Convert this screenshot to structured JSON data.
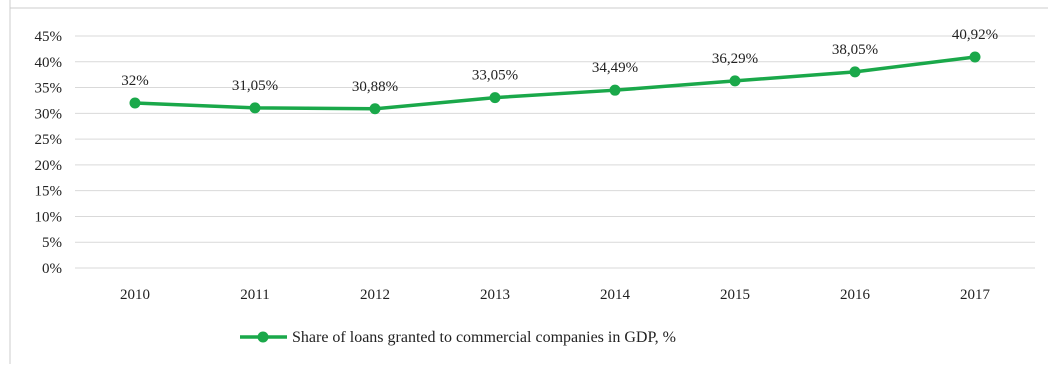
{
  "chart_data": {
    "type": "line",
    "title": "",
    "xlabel": "",
    "ylabel": "",
    "categories": [
      "2010",
      "2011",
      "2012",
      "2013",
      "2014",
      "2015",
      "2016",
      "2017"
    ],
    "series": [
      {
        "name": "Share of loans granted to commercial companies in GDP, %",
        "values": [
          32,
          31.05,
          30.88,
          33.05,
          34.49,
          36.29,
          38.05,
          40.92
        ],
        "labels": [
          "32%",
          "31,05%",
          "30,88%",
          "33,05%",
          "34,49%",
          "36,29%",
          "38,05%",
          "40,92%"
        ],
        "color": "#1aa84a"
      }
    ],
    "yticks": [
      "0%",
      "5%",
      "10%",
      "15%",
      "20%",
      "25%",
      "30%",
      "35%",
      "40%",
      "45%"
    ],
    "ylim": [
      0,
      45
    ],
    "grid": true,
    "gridColor": "#d9d9d9",
    "legend_position": "bottom"
  }
}
